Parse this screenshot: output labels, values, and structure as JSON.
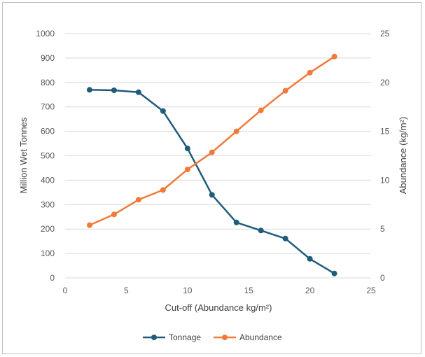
{
  "chart_data": {
    "type": "line",
    "title": "",
    "x": [
      2,
      4,
      6,
      8,
      10,
      12,
      14,
      16,
      18,
      20,
      22
    ],
    "xlabel": "Cut-off (Abundance kg/m²)",
    "xlim": [
      0,
      25
    ],
    "xticks": [
      "0",
      "5",
      "10",
      "15",
      "20",
      "25"
    ],
    "ylabel": "Million Wet Tonnes",
    "ylim": [
      0,
      1000
    ],
    "yticks": [
      "0",
      "100",
      "200",
      "300",
      "400",
      "500",
      "600",
      "700",
      "800",
      "900",
      "1000"
    ],
    "y2label": "Abundance (kg/m²)",
    "y2lim": [
      0,
      25
    ],
    "y2ticks": [
      "0",
      "5",
      "10",
      "15",
      "20",
      "25"
    ],
    "grid": true,
    "legend_position": "bottom",
    "series": [
      {
        "name": "Tonnage",
        "axis": "left",
        "color": "#1f5c7a",
        "values": [
          770,
          768,
          760,
          683,
          530,
          340,
          227,
          194,
          161,
          78,
          18
        ]
      },
      {
        "name": "Abundance",
        "axis": "right",
        "color": "#f07a3a",
        "values": [
          5.4,
          6.5,
          8.0,
          9.0,
          11.1,
          12.85,
          15.0,
          17.15,
          19.15,
          21.0,
          22.65
        ]
      }
    ]
  }
}
